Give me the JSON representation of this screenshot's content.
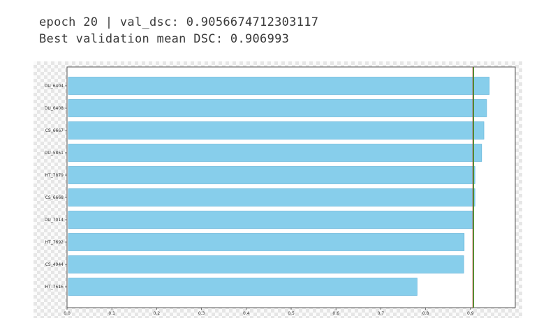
{
  "log": {
    "line1": "epoch 20 | val_dsc: 0.9056674712303117",
    "line2": "Best validation mean DSC: 0.906993"
  },
  "colors": {
    "bar": "#87ceeb",
    "bar_edge": "#5aaed6",
    "line_red": "#d62728",
    "line_green": "#2ca02c"
  },
  "chart_data": {
    "type": "bar",
    "orientation": "horizontal",
    "categories": [
      "DU_6404",
      "DU_6408",
      "CS_6667",
      "DU_5851",
      "HT_7879",
      "CS_6668",
      "DU_7014",
      "HT_7692",
      "CS_4944",
      "HT_7616"
    ],
    "values": [
      0.942,
      0.936,
      0.93,
      0.925,
      0.91,
      0.91,
      0.906,
      0.886,
      0.885,
      0.781
    ],
    "xlim": [
      0.0,
      1.0
    ],
    "xticks": [
      "0.0",
      "0.1",
      "0.2",
      "0.3",
      "0.4",
      "0.5",
      "0.6",
      "0.7",
      "0.8",
      "0.9"
    ],
    "reference_lines": [
      {
        "color": "red",
        "x": 0.9057
      },
      {
        "color": "green",
        "x": 0.907
      }
    ],
    "title": "",
    "xlabel": "",
    "ylabel": ""
  }
}
